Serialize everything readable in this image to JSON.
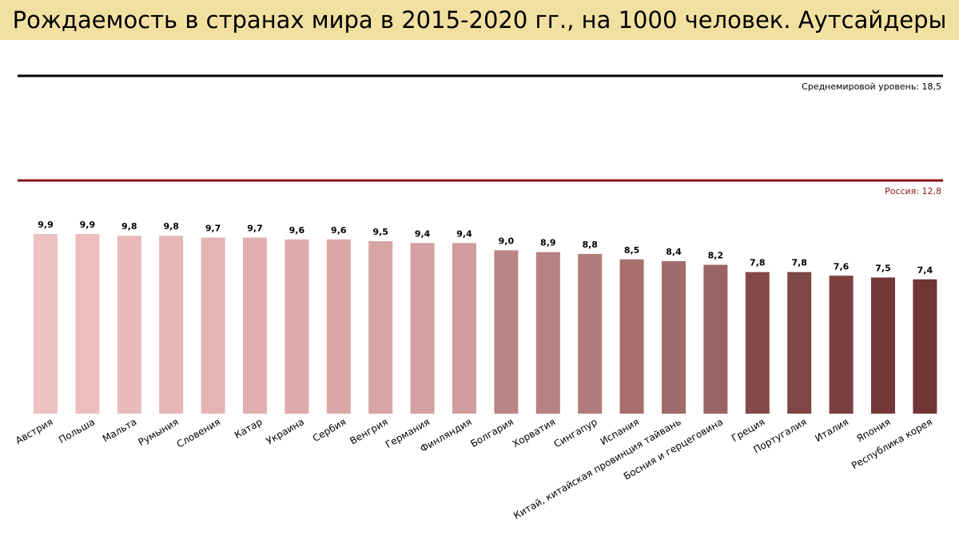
{
  "chart_data": {
    "type": "bar",
    "title": "Рождаемость в странах мира в 2015-2020 гг., на 1000 человек. Аутсайдеры",
    "categories": [
      "Австрия",
      "Польша",
      "Мальта",
      "Румыния",
      "Словения",
      "Катар",
      "Украина",
      "Сербия",
      "Венгрия",
      "Германия",
      "Финляндия",
      "Болгария",
      "Хорватия",
      "Сингапур",
      "Испания",
      "Китай, китайская провинция тайвань",
      "Босния и герцеговина",
      "Греция",
      "Португалия",
      "Италия",
      "Япония",
      "Республика корея"
    ],
    "values": [
      9.9,
      9.9,
      9.8,
      9.8,
      9.7,
      9.7,
      9.6,
      9.6,
      9.5,
      9.4,
      9.4,
      9.0,
      8.9,
      8.8,
      8.5,
      8.4,
      8.2,
      7.8,
      7.8,
      7.6,
      7.5,
      7.4
    ],
    "value_labels": [
      "9,9",
      "9,9",
      "9,8",
      "9,8",
      "9,7",
      "9,7",
      "9,6",
      "9,6",
      "9,5",
      "9,4",
      "9,4",
      "9,0",
      "8,9",
      "8,8",
      "8,5",
      "8,4",
      "8,2",
      "7,8",
      "7,8",
      "7,6",
      "7,5",
      "7,4"
    ],
    "bar_colors": [
      "#efc2c2",
      "#ecbebe",
      "#e9baba",
      "#e7b7b7",
      "#e4b3b3",
      "#e1afaf",
      "#dfacac",
      "#dba8a8",
      "#d8a4a4",
      "#d4a0a0",
      "#d09c9c",
      "#bb8585",
      "#b88282",
      "#b27c7c",
      "#a86f6f",
      "#a26b6b",
      "#9b6464",
      "#844a4a",
      "#7f4646",
      "#7a4040",
      "#733838",
      "#703535"
    ],
    "reference_lines": [
      {
        "label": "Среднемировой уровень: 18,5",
        "value": 18.5,
        "color": "#000000"
      },
      {
        "label": "Россия: 12,8",
        "value": 12.8,
        "color": "#8b1414"
      }
    ],
    "ylim": [
      0,
      18.5
    ],
    "grid": false,
    "legend": "none"
  }
}
